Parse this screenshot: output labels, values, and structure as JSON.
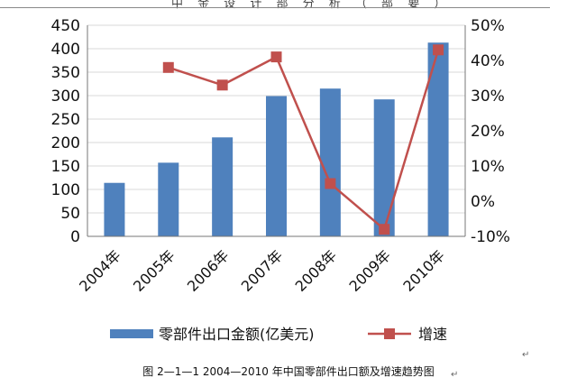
{
  "header": {
    "text": "中 金 设 计 部 分 析 （ 部 要 ）"
  },
  "chart_data": {
    "type": "bar",
    "categories": [
      "2004年",
      "2005年",
      "2006年",
      "2007年",
      "2008年",
      "2009年",
      "2010年"
    ],
    "series": [
      {
        "name": "零部件出口金额(亿美元)",
        "type": "bar",
        "axis": "left",
        "values": [
          114,
          157,
          211,
          299,
          315,
          292,
          413
        ]
      },
      {
        "name": "增速",
        "type": "line",
        "axis": "right",
        "values": [
          null,
          38,
          33,
          41,
          5,
          -8,
          43
        ]
      }
    ],
    "left_axis": {
      "ylim": [
        0,
        450
      ],
      "ticks": [
        "0",
        "50",
        "100",
        "150",
        "200",
        "250",
        "300",
        "350",
        "400",
        "450"
      ]
    },
    "right_axis": {
      "ylim": [
        -10,
        50
      ],
      "ticks": [
        "-10%",
        "0%",
        "10%",
        "20%",
        "30%",
        "40%",
        "50%"
      ]
    },
    "grid": true,
    "legend_position": "bottom",
    "colors": {
      "bar": "#4f81bd",
      "line": "#c0504d",
      "grid": "#d9d9d9"
    }
  },
  "caption": {
    "text": "图 2—1—1 2004—2010 年中国零部件出口额及增速趋势图"
  },
  "marks": {
    "return_symbol": "↵"
  }
}
